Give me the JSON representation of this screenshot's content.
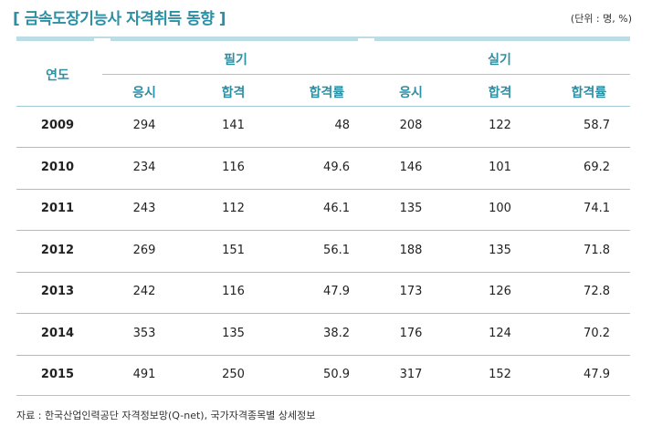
{
  "title": "[ 금속도장기능사 자격취득 동향 ]",
  "unit": "(단위 : 명, %)",
  "header": {
    "year": "연도",
    "written": "필기",
    "practical": "실기",
    "cols": [
      "응시",
      "합격",
      "합격률",
      "응시",
      "합격",
      "합격률"
    ]
  },
  "rows": [
    {
      "year": "2009",
      "values": [
        "294",
        "141",
        "48",
        "208",
        "122",
        "58.7"
      ]
    },
    {
      "year": "2010",
      "values": [
        "234",
        "116",
        "49.6",
        "146",
        "101",
        "69.2"
      ]
    },
    {
      "year": "2011",
      "values": [
        "243",
        "112",
        "46.1",
        "135",
        "100",
        "74.1"
      ]
    },
    {
      "year": "2012",
      "values": [
        "269",
        "151",
        "56.1",
        "188",
        "135",
        "71.8"
      ]
    },
    {
      "year": "2013",
      "values": [
        "242",
        "116",
        "47.9",
        "173",
        "126",
        "72.8"
      ]
    },
    {
      "year": "2014",
      "values": [
        "353",
        "135",
        "38.2",
        "176",
        "124",
        "70.2"
      ]
    },
    {
      "year": "2015",
      "values": [
        "491",
        "250",
        "50.9",
        "317",
        "152",
        "47.9"
      ]
    }
  ],
  "footnote": "자료 : 한국산업인력공단 자격정보망(Q-net), 국가자격종목별 상세정보"
}
